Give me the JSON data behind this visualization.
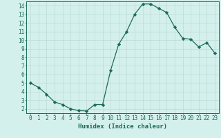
{
  "x": [
    0,
    1,
    2,
    3,
    4,
    5,
    6,
    7,
    8,
    9,
    10,
    11,
    12,
    13,
    14,
    15,
    16,
    17,
    18,
    19,
    20,
    21,
    22,
    23
  ],
  "y": [
    5.0,
    4.5,
    3.7,
    2.8,
    2.5,
    2.0,
    1.8,
    1.75,
    2.5,
    2.5,
    6.5,
    9.5,
    11.0,
    13.0,
    14.2,
    14.2,
    13.7,
    13.2,
    11.5,
    10.2,
    10.1,
    9.2,
    9.7,
    8.5
  ],
  "line_color": "#1a6b5a",
  "marker": "D",
  "markersize": 2.2,
  "bg_color": "#d4f0ec",
  "grid_color": "#c0ddd8",
  "xlabel": "Humidex (Indice chaleur)",
  "ylabel": "",
  "xlim": [
    -0.5,
    23.5
  ],
  "ylim": [
    1.5,
    14.5
  ],
  "xticks": [
    0,
    1,
    2,
    3,
    4,
    5,
    6,
    7,
    8,
    9,
    10,
    11,
    12,
    13,
    14,
    15,
    16,
    17,
    18,
    19,
    20,
    21,
    22,
    23
  ],
  "yticks": [
    2,
    3,
    4,
    5,
    6,
    7,
    8,
    9,
    10,
    11,
    12,
    13,
    14
  ],
  "xlabel_fontsize": 6.5,
  "tick_fontsize": 5.5,
  "tick_color": "#1a6b5a",
  "axis_color": "#1a6b5a",
  "linewidth": 0.9
}
